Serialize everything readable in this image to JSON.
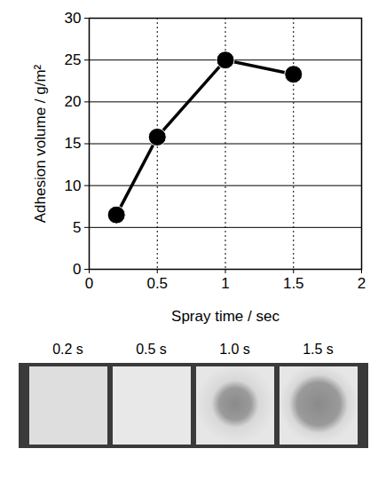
{
  "chart_data": {
    "type": "line",
    "x_label": "Spray time / sec",
    "y_label": "Adhesion volume / g/m²",
    "x": [
      0.2,
      0.5,
      1,
      1.5
    ],
    "values": [
      6.5,
      15.8,
      25,
      23.3
    ],
    "color": "#000000",
    "marker": "circle",
    "line_style": "solid",
    "xlim": [
      0,
      2
    ],
    "xticks": [
      0,
      0.5,
      1,
      1.5,
      2
    ],
    "ylim": [
      0,
      30
    ],
    "yticks": [
      0,
      5,
      10,
      15,
      20,
      25,
      30
    ],
    "grid": true,
    "annotations": [
      "0.2 s",
      "0.5 s",
      "1.0 s",
      "1.5 s"
    ]
  }
}
